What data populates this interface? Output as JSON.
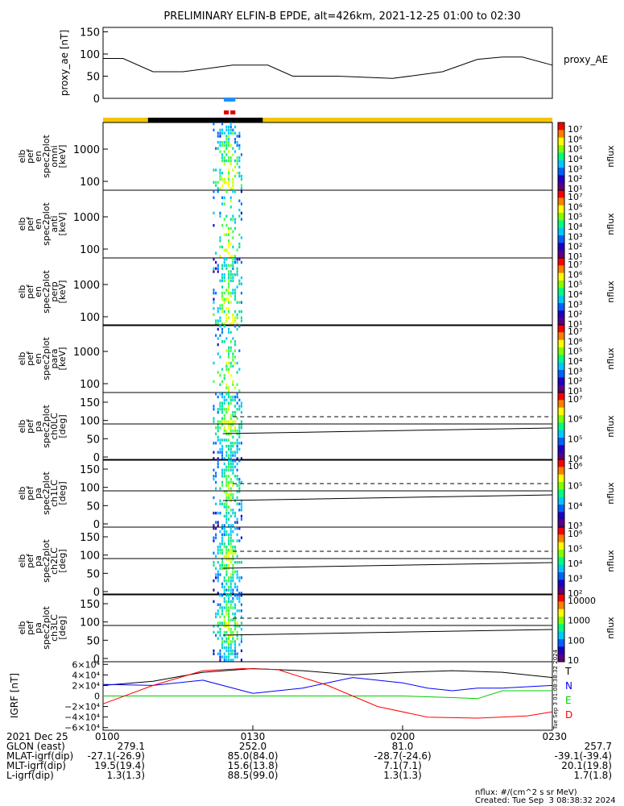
{
  "title": "PRELIMINARY ELFIN-B EPDE, alt=426km, 2021-12-25 01:00 to 02:30",
  "chart_data": [
    {
      "id": "proxy_ae",
      "type": "line",
      "ylabel": "proxy_ae [nT]",
      "legend": "proxy_AE",
      "yticks": [
        0,
        50,
        100,
        150
      ],
      "ylim": [
        0,
        160
      ],
      "x_minutes": [
        0,
        4,
        10,
        16,
        26,
        33,
        38,
        47,
        58,
        68,
        75,
        80,
        84,
        90
      ],
      "values": [
        90,
        90,
        60,
        60,
        75,
        75,
        50,
        50,
        45,
        60,
        88,
        93,
        93,
        75
      ]
    },
    {
      "id": "indicator_bars",
      "type": "bar",
      "science_zones": [
        {
          "color": "#1e90ff",
          "start_min": 24.2,
          "end_min": 26.5
        },
        {
          "color": "#e00000",
          "start_min": 24.2,
          "end_min": 25.2
        },
        {
          "color": "#e00000",
          "start_min": 25.5,
          "end_min": 26.5
        }
      ],
      "orbit_bar": [
        {
          "color": "#f5c400",
          "start_min": 0,
          "end_min": 9
        },
        {
          "color": "#000000",
          "start_min": 9,
          "end_min": 32
        },
        {
          "color": "#f5c400",
          "start_min": 32,
          "end_min": 90
        }
      ]
    },
    {
      "id": "spectrograms",
      "type": "heatmap",
      "panels": [
        {
          "labels": [
            "elb",
            "pef",
            "en",
            "spec2plot",
            "omni",
            "[keV]"
          ],
          "yaxis": "energy",
          "yticks": [
            "1000",
            "100"
          ],
          "colorbar_ticks": [
            "10⁷",
            "10⁶",
            "10⁵",
            "10⁴",
            "10³",
            "10²",
            "10¹"
          ],
          "colorbar_label": "nflux"
        },
        {
          "labels": [
            "elb",
            "pef",
            "en",
            "spec2plot",
            "anti",
            "[keV]"
          ],
          "yaxis": "energy",
          "yticks": [
            "1000",
            "100"
          ],
          "colorbar_ticks": [
            "10⁷",
            "10⁶",
            "10⁵",
            "10⁴",
            "10³",
            "10²",
            "10¹"
          ],
          "colorbar_label": "nflux"
        },
        {
          "labels": [
            "elb",
            "pef",
            "en",
            "spec2plot",
            "perp",
            "[keV]"
          ],
          "yaxis": "energy",
          "yticks": [
            "1000",
            "100"
          ],
          "colorbar_ticks": [
            "10⁷",
            "10⁶",
            "10⁵",
            "10⁴",
            "10³",
            "10²",
            "10¹"
          ],
          "colorbar_label": "nflux"
        },
        {
          "labels": [
            "elb",
            "pef",
            "en",
            "spec2plot",
            "para",
            "[keV]"
          ],
          "yaxis": "energy",
          "yticks": [
            "1000",
            "100"
          ],
          "colorbar_ticks": [
            "10⁷",
            "10⁶",
            "10⁵",
            "10⁴",
            "10³",
            "10²",
            "10¹"
          ],
          "colorbar_label": "nflux"
        },
        {
          "labels": [
            "elb",
            "pef",
            "pa",
            "spec2plot",
            "ch0LC",
            "[deg]"
          ],
          "yaxis": "pa",
          "yticks": [
            "150",
            "100",
            "50",
            "0"
          ],
          "colorbar_ticks": [
            "10⁷",
            "10⁶",
            "10⁵",
            "10⁴"
          ],
          "colorbar_label": "nflux"
        },
        {
          "labels": [
            "elb",
            "pef",
            "pa",
            "spec2plot",
            "ch1LC",
            "[deg]"
          ],
          "yaxis": "pa",
          "yticks": [
            "150",
            "100",
            "50",
            "0"
          ],
          "colorbar_ticks": [
            "10⁶",
            "10⁵",
            "10⁴",
            "10³"
          ],
          "colorbar_label": "nflux"
        },
        {
          "labels": [
            "elb",
            "pef",
            "pa",
            "spec2plot",
            "ch2LC",
            "[deg]"
          ],
          "yaxis": "pa",
          "yticks": [
            "150",
            "100",
            "50",
            "0"
          ],
          "colorbar_ticks": [
            "10⁶",
            "10⁵",
            "10⁴",
            "10³",
            "10²"
          ],
          "colorbar_label": "nflux"
        },
        {
          "labels": [
            "elb",
            "pef",
            "pa",
            "spec2plot",
            "ch3LC",
            "[deg]"
          ],
          "yaxis": "pa",
          "yticks": [
            "150",
            "100",
            "50",
            "0"
          ],
          "colorbar_ticks": [
            "10000",
            "1000",
            "100",
            "10"
          ],
          "colorbar_label": "nflux"
        }
      ],
      "data_window_min": [
        22,
        28
      ]
    },
    {
      "id": "igrf",
      "type": "line",
      "ylabel": "IGRF [nT]",
      "yticks": [
        "6×10⁴",
        "4×10⁴",
        "2×10⁴",
        "0",
        "−2×10⁴",
        "−4×10⁴",
        "−6×10⁴"
      ],
      "ylim": [
        -65000,
        65000
      ],
      "series": [
        {
          "name": "T",
          "color": "#000000",
          "x_minutes": [
            0,
            10,
            20,
            30,
            40,
            50,
            60,
            70,
            80,
            90
          ],
          "values": [
            20000,
            28000,
            45000,
            52000,
            48000,
            40000,
            45000,
            48000,
            45000,
            35000
          ]
        },
        {
          "name": "N",
          "color": "#0000ff",
          "x_minutes": [
            0,
            10,
            20,
            30,
            40,
            50,
            60,
            65,
            70,
            75,
            80,
            90
          ],
          "values": [
            22000,
            20000,
            30000,
            5000,
            15000,
            35000,
            25000,
            15000,
            10000,
            15000,
            15000,
            20000
          ]
        },
        {
          "name": "E",
          "color": "#00cc00",
          "x_minutes": [
            0,
            40,
            60,
            70,
            75,
            80,
            90
          ],
          "values": [
            0,
            0,
            0,
            -3000,
            -5000,
            10000,
            10000
          ]
        },
        {
          "name": "D",
          "color": "#ff0000",
          "x_minutes": [
            0,
            10,
            20,
            28,
            35,
            45,
            55,
            65,
            75,
            85,
            90
          ],
          "values": [
            -15000,
            20000,
            48000,
            52000,
            50000,
            20000,
            -20000,
            -40000,
            -42000,
            -38000,
            -30000
          ]
        }
      ]
    }
  ],
  "xaxis": {
    "date": "2021 Dec 25",
    "ticks": [
      "0100",
      "0130",
      "0200",
      "0230"
    ],
    "tick_minutes": [
      0,
      30,
      60,
      90
    ],
    "rows": [
      {
        "label": "GLON (east)",
        "values": [
          "279.1",
          "252.0",
          "81.0",
          "257.7"
        ]
      },
      {
        "label": "MLAT-igrf(dip)",
        "values": [
          "-27.1(-26.9)",
          "85.0(84.0)",
          "-28.7(-24.6)",
          "-39.1(-39.4)"
        ]
      },
      {
        "label": "MLT-igrf(dip)",
        "values": [
          "19.5(19.4)",
          "15.6(13.8)",
          "7.1(7.1)",
          "20.1(19.8)"
        ]
      },
      {
        "label": "L-igrf(dip)",
        "values": [
          "1.3(1.3)",
          "88.5(99.0)",
          "1.3(1.3)",
          "1.7(1.8)"
        ]
      }
    ]
  },
  "footer": {
    "units": "nflux: #/(cm^2 s sr MeV)",
    "created": "Created: Tue Sep  3 08:38:32 2024",
    "vertical_stamp": "Tue Sep  3 01:08:38:32 2024"
  }
}
